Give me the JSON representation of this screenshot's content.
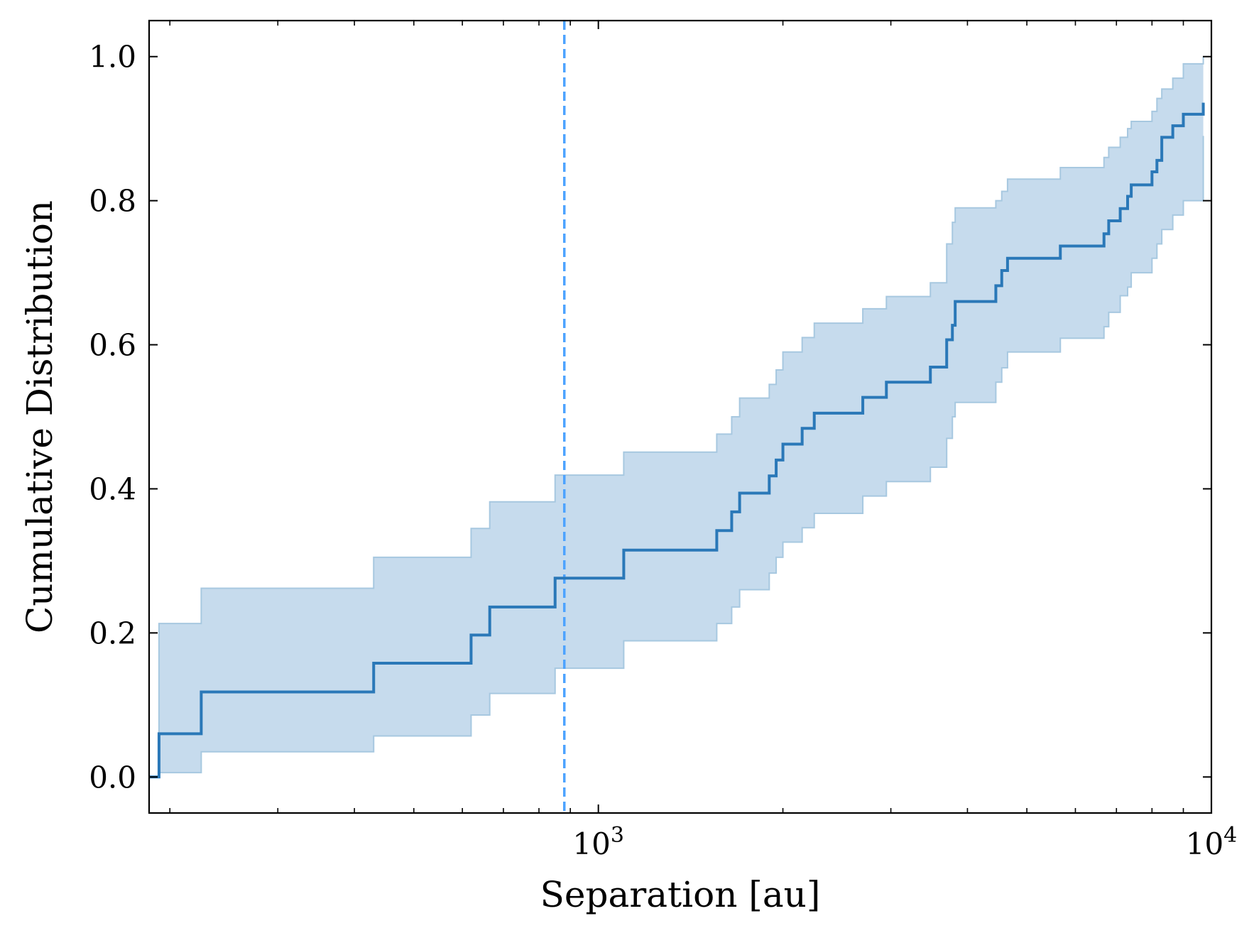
{
  "chart_data": {
    "type": "line",
    "xlabel": "Separation [au]",
    "ylabel": "Cumulative Distribution",
    "xscale": "log",
    "xlim": [
      185,
      10000
    ],
    "ylim": [
      -0.05,
      1.05
    ],
    "yticks": [
      0.0,
      0.2,
      0.4,
      0.6,
      0.8,
      1.0
    ],
    "ytick_labels": [
      "0.0",
      "0.2",
      "0.4",
      "0.6",
      "0.8",
      "1.0"
    ],
    "xticks_major": [
      1000,
      10000
    ],
    "xtick_major_labels": [
      {
        "base": "10",
        "exp": "3"
      },
      {
        "base": "10",
        "exp": "4"
      }
    ],
    "xticks_minor": [
      200,
      300,
      400,
      500,
      600,
      700,
      800,
      900,
      2000,
      3000,
      4000,
      5000,
      6000,
      7000,
      8000,
      9000
    ],
    "grid": false,
    "legend": "none",
    "colors": {
      "line": "#2a78b8",
      "band_fill": "#c6dbed",
      "band_edge": "#a7c8e0",
      "vline": "#4da3ff"
    },
    "vline": {
      "x": 880,
      "style": "dashed"
    },
    "series": [
      {
        "kind": "step",
        "x": [
          185,
          192,
          225,
          430,
          620,
          665,
          850,
          1100,
          1560,
          1650,
          1700,
          1900,
          1950,
          2000,
          2150,
          2250,
          2700,
          2950,
          3480,
          3700,
          3780,
          3820,
          4450,
          4550,
          4650,
          5670,
          6680,
          6800,
          7100,
          7300,
          7400,
          8000,
          8150,
          8300,
          8650,
          9000,
          9700
        ],
        "y": [
          0.0,
          0.06,
          0.118,
          0.158,
          0.197,
          0.236,
          0.276,
          0.315,
          0.342,
          0.368,
          0.394,
          0.418,
          0.44,
          0.462,
          0.484,
          0.505,
          0.527,
          0.548,
          0.569,
          0.607,
          0.627,
          0.66,
          0.682,
          0.703,
          0.72,
          0.737,
          0.754,
          0.772,
          0.789,
          0.806,
          0.822,
          0.84,
          0.856,
          0.888,
          0.904,
          0.92,
          0.936
        ]
      }
    ],
    "band_upper": {
      "x": [
        185,
        192,
        225,
        430,
        620,
        665,
        850,
        1100,
        1560,
        1650,
        1700,
        1900,
        1950,
        2000,
        2150,
        2250,
        2700,
        2950,
        3480,
        3700,
        3780,
        3820,
        4450,
        4550,
        4650,
        5670,
        6680,
        6800,
        7100,
        7300,
        7400,
        8000,
        8150,
        8300,
        8650,
        9000,
        9700
      ],
      "y": [
        0.0,
        0.213,
        0.262,
        0.305,
        0.345,
        0.382,
        0.419,
        0.451,
        0.476,
        0.5,
        0.526,
        0.545,
        0.565,
        0.59,
        0.61,
        0.63,
        0.65,
        0.667,
        0.686,
        0.74,
        0.77,
        0.79,
        0.8,
        0.813,
        0.83,
        0.846,
        0.86,
        0.874,
        0.888,
        0.9,
        0.91,
        0.924,
        0.942,
        0.955,
        0.97,
        0.99,
        1.0
      ]
    },
    "band_lower": {
      "x": [
        185,
        192,
        225,
        430,
        620,
        665,
        850,
        1100,
        1560,
        1650,
        1700,
        1900,
        1950,
        2000,
        2150,
        2250,
        2700,
        2950,
        3480,
        3700,
        3780,
        3820,
        4450,
        4550,
        4650,
        5670,
        6680,
        6800,
        7100,
        7300,
        7400,
        8000,
        8150,
        8300,
        8650,
        9000,
        9700
      ],
      "y": [
        0.0,
        0.006,
        0.035,
        0.057,
        0.086,
        0.116,
        0.151,
        0.189,
        0.213,
        0.236,
        0.26,
        0.283,
        0.305,
        0.326,
        0.346,
        0.366,
        0.39,
        0.41,
        0.43,
        0.47,
        0.5,
        0.52,
        0.548,
        0.568,
        0.59,
        0.609,
        0.625,
        0.645,
        0.668,
        0.68,
        0.7,
        0.72,
        0.74,
        0.76,
        0.78,
        0.8,
        0.89
      ]
    }
  }
}
